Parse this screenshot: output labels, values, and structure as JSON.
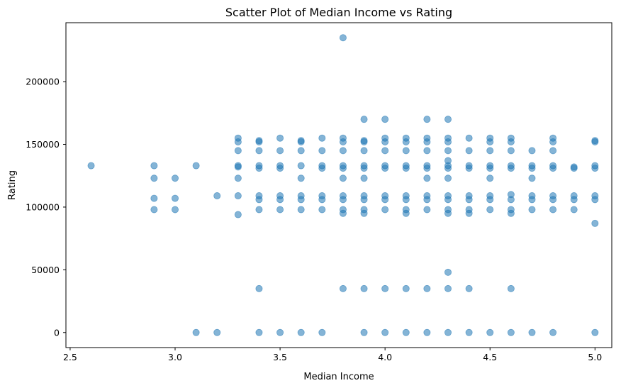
{
  "chart_data": {
    "type": "scatter",
    "title": "Scatter Plot of Median Income vs Rating",
    "xlabel": "Median Income",
    "ylabel": "Rating",
    "xlim": [
      2.48,
      5.08
    ],
    "ylim": [
      -12000,
      247000
    ],
    "xticks": [
      2.5,
      3.0,
      3.5,
      4.0,
      4.5,
      5.0
    ],
    "xtick_labels": [
      "2.5",
      "3.0",
      "3.5",
      "4.0",
      "4.5",
      "5.0"
    ],
    "yticks": [
      0,
      50000,
      100000,
      150000,
      200000
    ],
    "ytick_labels": [
      "0",
      "50000",
      "100000",
      "150000",
      "200000"
    ],
    "grid": false,
    "legend": "none",
    "point_color": "#1f77b4",
    "point_alpha": 0.55,
    "points": [
      [
        2.6,
        133000
      ],
      [
        2.9,
        133000
      ],
      [
        2.9,
        123000
      ],
      [
        2.9,
        107000
      ],
      [
        2.9,
        98000
      ],
      [
        3.0,
        123000
      ],
      [
        3.0,
        107000
      ],
      [
        3.0,
        98000
      ],
      [
        3.1,
        133000
      ],
      [
        3.1,
        0
      ],
      [
        3.2,
        109000
      ],
      [
        3.2,
        0
      ],
      [
        3.3,
        155000
      ],
      [
        3.3,
        152000
      ],
      [
        3.3,
        145000
      ],
      [
        3.3,
        133000
      ],
      [
        3.3,
        132000
      ],
      [
        3.3,
        123000
      ],
      [
        3.3,
        109000
      ],
      [
        3.3,
        94000
      ],
      [
        3.4,
        153000
      ],
      [
        3.4,
        152000
      ],
      [
        3.4,
        145000
      ],
      [
        3.4,
        133000
      ],
      [
        3.4,
        131000
      ],
      [
        3.4,
        109000
      ],
      [
        3.4,
        106000
      ],
      [
        3.4,
        98000
      ],
      [
        3.4,
        35000
      ],
      [
        3.4,
        0
      ],
      [
        3.5,
        155000
      ],
      [
        3.5,
        145000
      ],
      [
        3.5,
        133000
      ],
      [
        3.5,
        131000
      ],
      [
        3.5,
        109000
      ],
      [
        3.5,
        106000
      ],
      [
        3.5,
        98000
      ],
      [
        3.5,
        0
      ],
      [
        3.6,
        153000
      ],
      [
        3.6,
        152000
      ],
      [
        3.6,
        145000
      ],
      [
        3.6,
        133000
      ],
      [
        3.6,
        123000
      ],
      [
        3.6,
        109000
      ],
      [
        3.6,
        106000
      ],
      [
        3.6,
        98000
      ],
      [
        3.6,
        0
      ],
      [
        3.7,
        155000
      ],
      [
        3.7,
        145000
      ],
      [
        3.7,
        133000
      ],
      [
        3.7,
        131000
      ],
      [
        3.7,
        109000
      ],
      [
        3.7,
        106000
      ],
      [
        3.7,
        98000
      ],
      [
        3.7,
        0
      ],
      [
        3.8,
        235000
      ],
      [
        3.8,
        155000
      ],
      [
        3.8,
        152000
      ],
      [
        3.8,
        145000
      ],
      [
        3.8,
        133000
      ],
      [
        3.8,
        131000
      ],
      [
        3.8,
        123000
      ],
      [
        3.8,
        109000
      ],
      [
        3.8,
        106000
      ],
      [
        3.8,
        98000
      ],
      [
        3.8,
        95000
      ],
      [
        3.8,
        35000
      ],
      [
        3.9,
        170000
      ],
      [
        3.9,
        153000
      ],
      [
        3.9,
        152000
      ],
      [
        3.9,
        145000
      ],
      [
        3.9,
        133000
      ],
      [
        3.9,
        131000
      ],
      [
        3.9,
        123000
      ],
      [
        3.9,
        109000
      ],
      [
        3.9,
        106000
      ],
      [
        3.9,
        98000
      ],
      [
        3.9,
        95000
      ],
      [
        3.9,
        35000
      ],
      [
        3.9,
        0
      ],
      [
        4.0,
        170000
      ],
      [
        4.0,
        155000
      ],
      [
        4.0,
        152000
      ],
      [
        4.0,
        145000
      ],
      [
        4.0,
        133000
      ],
      [
        4.0,
        131000
      ],
      [
        4.0,
        109000
      ],
      [
        4.0,
        106000
      ],
      [
        4.0,
        98000
      ],
      [
        4.0,
        35000
      ],
      [
        4.0,
        0
      ],
      [
        4.1,
        155000
      ],
      [
        4.1,
        152000
      ],
      [
        4.1,
        145000
      ],
      [
        4.1,
        133000
      ],
      [
        4.1,
        131000
      ],
      [
        4.1,
        109000
      ],
      [
        4.1,
        106000
      ],
      [
        4.1,
        98000
      ],
      [
        4.1,
        95000
      ],
      [
        4.1,
        35000
      ],
      [
        4.1,
        0
      ],
      [
        4.2,
        170000
      ],
      [
        4.2,
        155000
      ],
      [
        4.2,
        152000
      ],
      [
        4.2,
        145000
      ],
      [
        4.2,
        133000
      ],
      [
        4.2,
        131000
      ],
      [
        4.2,
        123000
      ],
      [
        4.2,
        109000
      ],
      [
        4.2,
        106000
      ],
      [
        4.2,
        98000
      ],
      [
        4.2,
        35000
      ],
      [
        4.2,
        0
      ],
      [
        4.3,
        170000
      ],
      [
        4.3,
        155000
      ],
      [
        4.3,
        152000
      ],
      [
        4.3,
        145000
      ],
      [
        4.3,
        137000
      ],
      [
        4.3,
        133000
      ],
      [
        4.3,
        131000
      ],
      [
        4.3,
        123000
      ],
      [
        4.3,
        109000
      ],
      [
        4.3,
        106000
      ],
      [
        4.3,
        98000
      ],
      [
        4.3,
        95000
      ],
      [
        4.3,
        48000
      ],
      [
        4.3,
        35000
      ],
      [
        4.3,
        0
      ],
      [
        4.4,
        155000
      ],
      [
        4.4,
        145000
      ],
      [
        4.4,
        133000
      ],
      [
        4.4,
        131000
      ],
      [
        4.4,
        109000
      ],
      [
        4.4,
        106000
      ],
      [
        4.4,
        98000
      ],
      [
        4.4,
        95000
      ],
      [
        4.4,
        35000
      ],
      [
        4.4,
        0
      ],
      [
        4.5,
        155000
      ],
      [
        4.5,
        152000
      ],
      [
        4.5,
        145000
      ],
      [
        4.5,
        133000
      ],
      [
        4.5,
        131000
      ],
      [
        4.5,
        123000
      ],
      [
        4.5,
        109000
      ],
      [
        4.5,
        106000
      ],
      [
        4.5,
        98000
      ],
      [
        4.5,
        0
      ],
      [
        4.6,
        155000
      ],
      [
        4.6,
        152000
      ],
      [
        4.6,
        145000
      ],
      [
        4.6,
        133000
      ],
      [
        4.6,
        131000
      ],
      [
        4.6,
        110000
      ],
      [
        4.6,
        106000
      ],
      [
        4.6,
        98000
      ],
      [
        4.6,
        95000
      ],
      [
        4.6,
        35000
      ],
      [
        4.6,
        0
      ],
      [
        4.7,
        145000
      ],
      [
        4.7,
        133000
      ],
      [
        4.7,
        131000
      ],
      [
        4.7,
        123000
      ],
      [
        4.7,
        109000
      ],
      [
        4.7,
        106000
      ],
      [
        4.7,
        98000
      ],
      [
        4.7,
        0
      ],
      [
        4.8,
        155000
      ],
      [
        4.8,
        152000
      ],
      [
        4.8,
        145000
      ],
      [
        4.8,
        133000
      ],
      [
        4.8,
        131000
      ],
      [
        4.8,
        109000
      ],
      [
        4.8,
        106000
      ],
      [
        4.8,
        98000
      ],
      [
        4.8,
        0
      ],
      [
        4.9,
        132000
      ],
      [
        4.9,
        131000
      ],
      [
        4.9,
        109000
      ],
      [
        4.9,
        106000
      ],
      [
        4.9,
        98000
      ],
      [
        5.0,
        153000
      ],
      [
        5.0,
        152000
      ],
      [
        5.0,
        133000
      ],
      [
        5.0,
        131000
      ],
      [
        5.0,
        109000
      ],
      [
        5.0,
        106000
      ],
      [
        5.0,
        87000
      ],
      [
        5.0,
        0
      ]
    ]
  }
}
